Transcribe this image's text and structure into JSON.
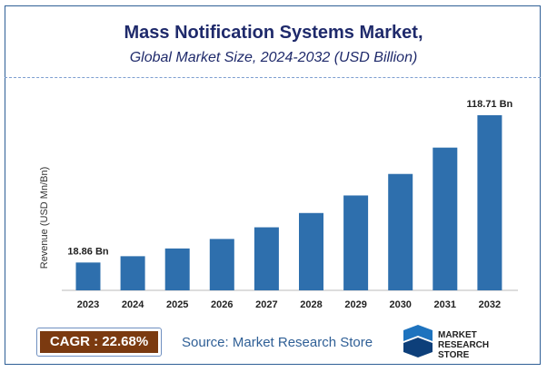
{
  "chart_data": {
    "type": "bar",
    "title": "Mass Notification Systems Market,",
    "subtitle": "Global Market Size, 2024-2032 (USD Billion)",
    "ylabel": "Revenue (USD Mn/Bn)",
    "xlabel": "",
    "categories": [
      "2023",
      "2024",
      "2025",
      "2026",
      "2027",
      "2028",
      "2029",
      "2030",
      "2031",
      "2032"
    ],
    "values": [
      18.86,
      23.14,
      28.39,
      34.83,
      42.73,
      52.42,
      64.31,
      78.9,
      96.76,
      118.71
    ],
    "data_labels": {
      "first": "18.86 Bn",
      "last": "118.71 Bn"
    },
    "ylim": [
      0,
      125
    ],
    "grid": false,
    "bar_color": "#2e6fad"
  },
  "footer": {
    "cagr": "CAGR : 22.68%",
    "source": "Source: Market Research Store",
    "logo_text": "MARKET RESEARCH STORE",
    "logo_line1": "MARKET",
    "logo_line2": "RESEARCH STORE"
  }
}
